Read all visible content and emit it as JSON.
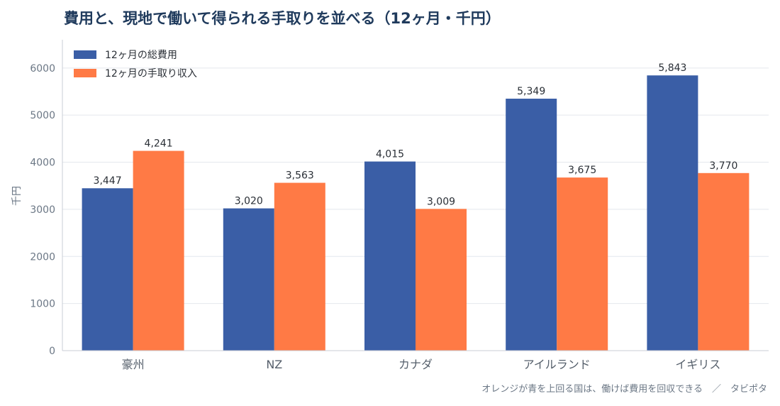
{
  "chart_data": {
    "type": "bar",
    "title": "費用と、現地で働いて得られる手取りを並べる（12ヶ月・千円）",
    "ylabel": "千円",
    "xlabel": "",
    "ylim": [
      0,
      6600
    ],
    "yticks": [
      0,
      1000,
      2000,
      3000,
      4000,
      5000,
      6000
    ],
    "categories": [
      "豪州",
      "NZ",
      "カナダ",
      "アイルランド",
      "イギリス"
    ],
    "series": [
      {
        "name": "12ヶ月の総費用",
        "color": "#3a5ea6",
        "values": [
          3447,
          3020,
          4015,
          5349,
          5843
        ],
        "labels": [
          "3,447",
          "3,020",
          "4,015",
          "5,349",
          "5,843"
        ]
      },
      {
        "name": "12ヶ月の手取り収入",
        "color": "#ff7a45",
        "values": [
          4241,
          3563,
          3009,
          3675,
          3770
        ],
        "labels": [
          "4,241",
          "3,563",
          "3,009",
          "3,675",
          "3,770"
        ]
      }
    ],
    "legend": "top-left",
    "grid": "horizontal"
  },
  "footer": "オレンジが青を上回る国は、働けば費用を回収できる　／　タビポタ"
}
